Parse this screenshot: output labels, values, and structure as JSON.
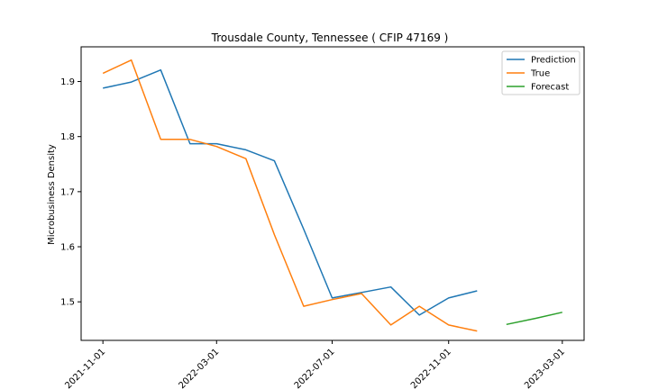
{
  "chart_data": {
    "type": "line",
    "title": "Trousdale County, Tennessee ( CFIP 47169 )",
    "xlabel": "",
    "ylabel": "Microbusiness Density",
    "x_tick_labels": [
      "2021-11-01",
      "2022-03-01",
      "2022-07-01",
      "2022-11-01",
      "2023-03-01"
    ],
    "x_ticks": [
      "2021-11-01",
      "2022-03-01",
      "2022-07-01",
      "2022-11-01",
      "2023-03-01"
    ],
    "y_ticks": [
      1.5,
      1.6,
      1.7,
      1.8,
      1.9
    ],
    "xlim": [
      "2021-10-09",
      "2023-03-24"
    ],
    "ylim": [
      1.43,
      1.963
    ],
    "grid": false,
    "legend_position": "top-right",
    "series": [
      {
        "name": "Prediction",
        "color": "#1f77b4",
        "points": [
          {
            "x": "2021-11-01",
            "y": 1.888
          },
          {
            "x": "2021-12-01",
            "y": 1.899
          },
          {
            "x": "2022-01-01",
            "y": 1.921
          },
          {
            "x": "2022-02-01",
            "y": 1.787
          },
          {
            "x": "2022-03-01",
            "y": 1.787
          },
          {
            "x": "2022-04-01",
            "y": 1.776
          },
          {
            "x": "2022-05-01",
            "y": 1.756
          },
          {
            "x": "2022-06-01",
            "y": 1.632
          },
          {
            "x": "2022-07-01",
            "y": 1.507
          },
          {
            "x": "2022-08-01",
            "y": 1.517
          },
          {
            "x": "2022-09-01",
            "y": 1.527
          },
          {
            "x": "2022-10-01",
            "y": 1.476
          },
          {
            "x": "2022-11-01",
            "y": 1.507
          },
          {
            "x": "2022-12-01",
            "y": 1.52
          }
        ]
      },
      {
        "name": "True",
        "color": "#ff7f0e",
        "points": [
          {
            "x": "2021-11-01",
            "y": 1.915
          },
          {
            "x": "2021-12-01",
            "y": 1.939
          },
          {
            "x": "2022-01-01",
            "y": 1.795
          },
          {
            "x": "2022-02-01",
            "y": 1.795
          },
          {
            "x": "2022-03-01",
            "y": 1.782
          },
          {
            "x": "2022-04-01",
            "y": 1.76
          },
          {
            "x": "2022-05-01",
            "y": 1.622
          },
          {
            "x": "2022-06-01",
            "y": 1.492
          },
          {
            "x": "2022-07-01",
            "y": 1.504
          },
          {
            "x": "2022-08-01",
            "y": 1.515
          },
          {
            "x": "2022-09-01",
            "y": 1.458
          },
          {
            "x": "2022-10-01",
            "y": 1.492
          },
          {
            "x": "2022-11-01",
            "y": 1.458
          },
          {
            "x": "2022-12-01",
            "y": 1.447
          }
        ]
      },
      {
        "name": "Forecast",
        "color": "#2ca02c",
        "points": [
          {
            "x": "2023-01-01",
            "y": 1.459
          },
          {
            "x": "2023-02-01",
            "y": 1.47
          },
          {
            "x": "2023-03-01",
            "y": 1.481
          }
        ]
      }
    ]
  }
}
